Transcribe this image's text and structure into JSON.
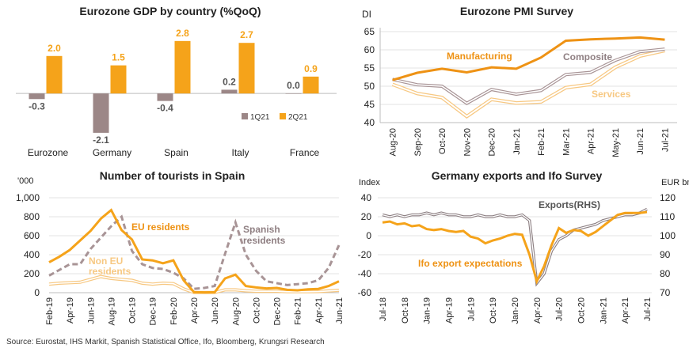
{
  "source": "Source: Eurostat, IHS Markit, Spanish Statistical Office, Ifo, Bloomberg, Krungsri Research",
  "colors": {
    "orange": "#f5a31a",
    "darkorange": "#ee9214",
    "gray": "#a7969a",
    "brown": "#9c8787",
    "light": "#f7c882"
  },
  "chart_data": [
    {
      "type": "bar",
      "title": "Eurozone GDP by country (%QoQ)",
      "categories": [
        "Eurozone",
        "Germany",
        "Spain",
        "Italy",
        "France"
      ],
      "series": [
        {
          "name": "1Q21",
          "values": [
            -0.3,
            -2.1,
            -0.4,
            0.2,
            0.0
          ],
          "labels": [
            "-0.3",
            "-2.1",
            "-0.4",
            "0.2",
            "0.0"
          ]
        },
        {
          "name": "2Q21",
          "values": [
            2.0,
            1.5,
            2.8,
            2.7,
            0.9
          ],
          "labels": [
            "2.0",
            "1.5",
            "2.8",
            "2.7",
            "0.9"
          ]
        }
      ],
      "ylim": [
        -2.4,
        3.3
      ],
      "legend": "bottom-right",
      "grid": false
    },
    {
      "type": "line",
      "title": "Eurozone PMI Survey",
      "ylabel": "DI",
      "x": [
        "Aug-20",
        "Sep-20",
        "Oct-20",
        "Nov-20",
        "Dec-20",
        "Jan-21",
        "Feb-21",
        "Mar-21",
        "Apr-21",
        "May-21",
        "Jun-21",
        "Jul-21"
      ],
      "y_ticks": [
        40,
        45,
        50,
        55,
        60,
        65
      ],
      "ylim": [
        40,
        65
      ],
      "series": [
        {
          "name": "Manufacturing",
          "values": [
            51.7,
            53.7,
            54.8,
            53.8,
            55.2,
            54.8,
            57.9,
            62.5,
            62.9,
            63.1,
            63.4,
            62.8
          ]
        },
        {
          "name": "Composite",
          "values": [
            51.9,
            50.4,
            50.0,
            45.3,
            49.1,
            47.8,
            48.8,
            53.2,
            53.8,
            57.1,
            59.5,
            60.2
          ]
        },
        {
          "name": "Services",
          "values": [
            50.5,
            48.0,
            46.9,
            41.7,
            46.4,
            45.4,
            45.7,
            49.6,
            50.5,
            55.2,
            58.3,
            59.8
          ]
        }
      ],
      "grid": true
    },
    {
      "type": "line",
      "title": "Number of tourists in Spain",
      "ylabel": "'000",
      "y_ticks": [
        "0",
        "200",
        "400",
        "600",
        "800",
        "1,000"
      ],
      "ylim": [
        0,
        1000
      ],
      "x_ticks": [
        "Feb-19",
        "Apr-19",
        "Jun-19",
        "Aug-19",
        "Oct-19",
        "Dec-19",
        "Feb-20",
        "Apr-20",
        "Jun-20",
        "Aug-20",
        "Oct-20",
        "Dec-20",
        "Feb-21",
        "Apr-21",
        "Jun-21"
      ],
      "months": [
        "Feb-19",
        "Mar-19",
        "Apr-19",
        "May-19",
        "Jun-19",
        "Jul-19",
        "Aug-19",
        "Sep-19",
        "Oct-19",
        "Nov-19",
        "Dec-19",
        "Jan-20",
        "Feb-20",
        "Mar-20",
        "Apr-20",
        "May-20",
        "Jun-20",
        "Jul-20",
        "Aug-20",
        "Sep-20",
        "Oct-20",
        "Nov-20",
        "Dec-20",
        "Jan-21",
        "Feb-21",
        "Mar-21",
        "Apr-21",
        "May-21",
        "Jun-21"
      ],
      "series": [
        {
          "name": "EU residents",
          "values": [
            320,
            380,
            450,
            550,
            650,
            780,
            870,
            660,
            560,
            350,
            340,
            310,
            340,
            130,
            5,
            3,
            5,
            150,
            190,
            70,
            55,
            45,
            50,
            30,
            25,
            35,
            40,
            70,
            120
          ]
        },
        {
          "name": "Spanish residents",
          "values": [
            180,
            240,
            300,
            300,
            460,
            580,
            700,
            800,
            440,
            300,
            260,
            250,
            210,
            150,
            40,
            50,
            70,
            410,
            740,
            400,
            230,
            120,
            100,
            80,
            90,
            100,
            130,
            260,
            500
          ]
        },
        {
          "name": "Non EU residents",
          "values": [
            90,
            100,
            105,
            110,
            140,
            170,
            150,
            140,
            130,
            100,
            90,
            100,
            95,
            40,
            2,
            2,
            2,
            30,
            30,
            20,
            15,
            15,
            15,
            10,
            10,
            10,
            12,
            18,
            25
          ]
        }
      ],
      "annotations": [
        "EU residents",
        "Spanish residents",
        "Non EU residents"
      ],
      "grid": true
    },
    {
      "type": "line",
      "title": "Germany exports and Ifo Survey",
      "ylabel": "Index",
      "y2label": "EUR bn",
      "y_ticks": [
        -60,
        -40,
        -20,
        0,
        20,
        40
      ],
      "y2_ticks": [
        70,
        80,
        90,
        100,
        110,
        120
      ],
      "ylim": [
        -60,
        40
      ],
      "y2lim": [
        70,
        120
      ],
      "x_ticks": [
        "Jul-18",
        "Oct-18",
        "Jan-19",
        "Apr-19",
        "Jul-19",
        "Oct-19",
        "Jan-20",
        "Apr-20",
        "Jul-20",
        "Oct-20",
        "Jan-21",
        "Apr-21",
        "Jul-21"
      ],
      "months": [
        "Jul-18",
        "Aug-18",
        "Sep-18",
        "Oct-18",
        "Nov-18",
        "Dec-18",
        "Jan-19",
        "Feb-19",
        "Mar-19",
        "Apr-19",
        "May-19",
        "Jun-19",
        "Jul-19",
        "Aug-19",
        "Sep-19",
        "Oct-19",
        "Nov-19",
        "Dec-19",
        "Jan-20",
        "Feb-20",
        "Mar-20",
        "Apr-20",
        "May-20",
        "Jun-20",
        "Jul-20",
        "Aug-20",
        "Sep-20",
        "Oct-20",
        "Nov-20",
        "Dec-20",
        "Jan-21",
        "Feb-21",
        "Mar-21",
        "Apr-21",
        "May-21",
        "Jun-21",
        "Jul-21"
      ],
      "series": [
        {
          "name": "Ifo export expectations",
          "axis": "left",
          "values": [
            14,
            15,
            12,
            13,
            10,
            11,
            7,
            6,
            7,
            5,
            4,
            5,
            -1,
            -3,
            -8,
            -5,
            -3,
            0,
            2,
            1,
            -20,
            -48,
            -32,
            -10,
            8,
            3,
            6,
            5,
            0,
            4,
            10,
            16,
            22,
            24,
            24,
            24,
            25
          ]
        },
        {
          "name": "Exports(RHS)",
          "axis": "right",
          "values": [
            111,
            110,
            111,
            110,
            111,
            111,
            112,
            111,
            112,
            111,
            111,
            110,
            110,
            111,
            110,
            110,
            111,
            110,
            110,
            111,
            108,
            75,
            80,
            92,
            98,
            100,
            103,
            104,
            105,
            106,
            108,
            109,
            110,
            111,
            111,
            112,
            114
          ]
        }
      ],
      "annotations": [
        "Exports(RHS)",
        "Ifo export expectations"
      ],
      "grid": true
    }
  ]
}
